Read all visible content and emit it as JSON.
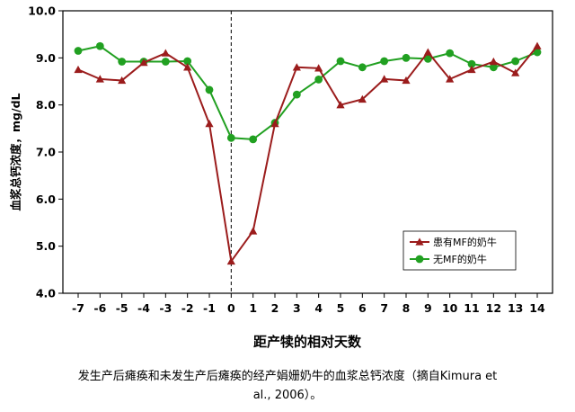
{
  "chart_data": {
    "type": "line",
    "title": "",
    "xlabel": "距产犊的相对天数",
    "ylabel": "血浆总钙浓度，mg/dL",
    "x": [
      -7,
      -6,
      -5,
      -4,
      -3,
      -2,
      -1,
      0,
      1,
      2,
      3,
      4,
      5,
      6,
      7,
      8,
      9,
      10,
      11,
      12,
      13,
      14
    ],
    "xticks": [
      "-7",
      "-6",
      "-5",
      "-4",
      "-3",
      "-2",
      "-1",
      "0",
      "1",
      "2",
      "3",
      "4",
      "5",
      "6",
      "7",
      "8",
      "9",
      "10",
      "11",
      "12",
      "13",
      "14"
    ],
    "ylim": [
      4.0,
      10.0
    ],
    "yticks": [
      "4.0",
      "5.0",
      "6.0",
      "7.0",
      "8.0",
      "9.0",
      "10.0"
    ],
    "grid": false,
    "vline_x": 0,
    "legend_position": "lower-right",
    "series": [
      {
        "name": "患有MF的奶牛",
        "color": "#9b1c1c",
        "marker": "triangle",
        "values": [
          8.75,
          8.55,
          8.52,
          8.9,
          9.1,
          8.8,
          7.6,
          4.68,
          5.32,
          7.6,
          8.8,
          8.78,
          8.0,
          8.12,
          8.55,
          8.52,
          9.12,
          8.55,
          8.75,
          8.92,
          8.68,
          9.25
        ]
      },
      {
        "name": "无MF的奶牛",
        "color": "#21a021",
        "marker": "circle",
        "values": [
          9.15,
          9.25,
          8.92,
          8.92,
          8.92,
          8.93,
          8.32,
          7.3,
          7.27,
          7.62,
          8.22,
          8.54,
          8.93,
          8.8,
          8.93,
          9.0,
          8.98,
          9.1,
          8.87,
          8.8,
          8.93,
          9.12
        ]
      }
    ]
  },
  "caption": {
    "line1": "发生产后瘫痪和未发生产后瘫痪的经产娟姗奶牛的血浆总钙浓度（摘自Kimura et",
    "line2": "al., 2006）。"
  }
}
